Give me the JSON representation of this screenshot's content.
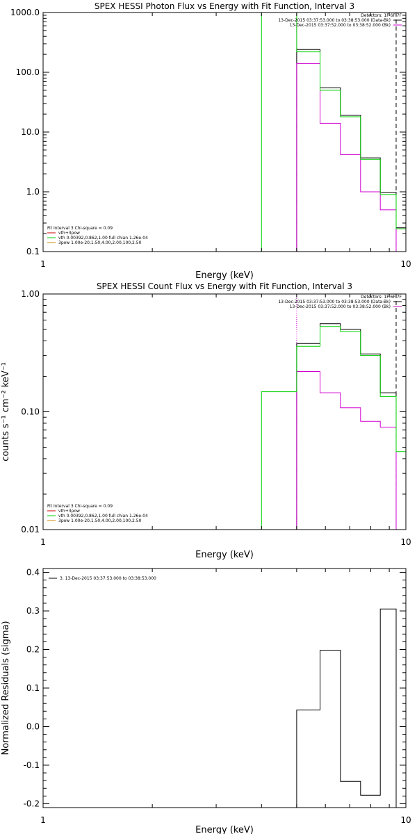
{
  "colors": {
    "black": "#000000",
    "magenta": "#d000d0",
    "green": "#00d000",
    "red": "#cc0000",
    "orange": "#cc8800"
  },
  "chart_data": [
    {
      "type": "line",
      "title": "SPEX HESSI Photon Flux vs Energy with Fit Function, Interval 3",
      "xlabel": "Energy (keV)",
      "ylabel": "",
      "xscale": "log",
      "yscale": "log",
      "xlim": [
        1,
        10
      ],
      "ylim": [
        0.1,
        1000.0
      ],
      "xticks": [
        {
          "v": 1,
          "label": "1"
        },
        {
          "v": 10,
          "label": "10"
        }
      ],
      "yticks": [
        {
          "v": 0.1,
          "label": "0.1"
        },
        {
          "v": 1.0,
          "label": "1.0"
        },
        {
          "v": 10.0,
          "label": "10.0"
        },
        {
          "v": 100.0,
          "label": "100.0"
        },
        {
          "v": 1000.0,
          "label": "1000.0"
        }
      ],
      "legend_tr": [
        {
          "text": "Detectors: 1F 6F 7F",
          "color": "#000000",
          "line": false
        },
        {
          "text": "13-Dec-2015 03:37:53.000 to 03:38:53.000 (Data-Bk)",
          "color": "#000000",
          "line": true
        },
        {
          "text": "13-Dec-2015 03:37:52.000 to 03:38:52.000 (Bk)",
          "color": "#d000d0",
          "line": true
        }
      ],
      "legend_bl": [
        {
          "text": "Fit Interval 3   Chi-square = 0.09",
          "color": "#000000",
          "line": false
        },
        {
          "text": "vth+3pow",
          "color": "#cc0000",
          "line": true
        },
        {
          "text": "vth 0.00392,0.862,1.00   full chian 1.26e-04",
          "color": "#00d000",
          "line": true
        },
        {
          "text": "3pow 1.00e-20,1.50,4.00,2.00,100,2.50",
          "color": "#cc8800",
          "line": true
        }
      ],
      "series": [
        {
          "name": "13-Dec-2015 03:37:53.000 to 03:38:53.000 (Data-Bk)",
          "color": "#000000",
          "edges": [
            5.0,
            5.8,
            6.6,
            7.5,
            8.5,
            9.4,
            10.0
          ],
          "values": [
            240,
            55,
            19,
            3.7,
            0.98,
            0.25
          ]
        },
        {
          "name": "13-Dec-2015 03:37:52.000 to 03:38:52.000 (Bk)",
          "color": "#d000d0",
          "edges": [
            5.0,
            5.8,
            6.6,
            7.5,
            8.5,
            9.4
          ],
          "values": [
            140,
            14,
            4.2,
            1.0,
            0.5
          ]
        },
        {
          "name": "vth 0.00392,0.862,1.00   full chian 1.26e-04",
          "color": "#00d000",
          "edges": [
            4.0,
            5.0,
            5.8,
            6.6,
            7.5,
            8.5,
            9.4,
            10.0
          ],
          "values": [
            1000,
            220,
            50,
            18,
            3.5,
            0.9,
            0.24
          ]
        }
      ],
      "vlines": [
        {
          "x": 5.0,
          "color": "#d000d0",
          "style": "dot"
        },
        {
          "x": 9.4,
          "color": "#000000",
          "style": "dash"
        }
      ]
    },
    {
      "type": "line",
      "title": "SPEX HESSI Count Flux vs Energy with Fit Function, Interval 3",
      "xlabel": "Energy (keV)",
      "ylabel": "counts s⁻¹ cm⁻² keV⁻¹",
      "xscale": "log",
      "yscale": "log",
      "xlim": [
        1,
        10
      ],
      "ylim": [
        0.01,
        1.0
      ],
      "xticks": [
        {
          "v": 1,
          "label": "1"
        },
        {
          "v": 10,
          "label": "10"
        }
      ],
      "yticks": [
        {
          "v": 0.01,
          "label": "0.01"
        },
        {
          "v": 0.1,
          "label": "0.10"
        },
        {
          "v": 1.0,
          "label": "1.00"
        }
      ],
      "legend_tr": [
        {
          "text": "Detectors: 1F 6F 7F",
          "color": "#000000",
          "line": false
        },
        {
          "text": "13-Dec-2015 03:37:53.000 to 03:38:53.000 (Data-Bk)",
          "color": "#000000",
          "line": true
        },
        {
          "text": "13-Dec-2015 03:37:52.000 to 03:38:52.000 (Bk)",
          "color": "#d000d0",
          "line": true
        }
      ],
      "legend_bl": [
        {
          "text": "Fit Interval 3   Chi-square = 0.09",
          "color": "#000000",
          "line": false
        },
        {
          "text": "vth+3pow",
          "color": "#cc0000",
          "line": true
        },
        {
          "text": "vth 0.00392,0.862,1.00   full chian 1.26e-04",
          "color": "#00d000",
          "line": true
        },
        {
          "text": "3pow 1.00e-20,1.50,4.00,2.00,100,2.50",
          "color": "#cc8800",
          "line": true
        }
      ],
      "series": [
        {
          "name": "13-Dec-2015 03:37:53.000 to 03:38:53.000 (Data-Bk)",
          "color": "#000000",
          "edges": [
            5.0,
            5.8,
            6.6,
            7.5,
            8.5,
            9.4
          ],
          "values": [
            0.38,
            0.56,
            0.5,
            0.31,
            0.145
          ]
        },
        {
          "name": "13-Dec-2015 03:37:52.000 to 03:38:52.000 (Bk)",
          "color": "#d000d0",
          "edges": [
            5.0,
            5.8,
            6.6,
            7.5,
            8.5,
            9.4
          ],
          "values": [
            0.22,
            0.145,
            0.108,
            0.083,
            0.074
          ]
        },
        {
          "name": "vth 0.00392,0.862,1.00   full chian 1.26e-04",
          "color": "#00d000",
          "edges": [
            4.0,
            5.0,
            5.8,
            6.6,
            7.5,
            8.5,
            9.4,
            10.0
          ],
          "values": [
            0.148,
            0.36,
            0.53,
            0.48,
            0.3,
            0.135,
            0.046
          ]
        }
      ],
      "vlines": [
        {
          "x": 5.0,
          "color": "#d000d0",
          "style": "dot"
        },
        {
          "x": 9.4,
          "color": "#000000",
          "style": "dash"
        }
      ]
    },
    {
      "type": "line",
      "title": "",
      "xlabel": "Energy (keV)",
      "ylabel": "Normalized Residuals (sigma)",
      "xscale": "log",
      "yscale": "linear",
      "xlim": [
        1,
        10
      ],
      "ylim": [
        -0.21,
        0.41
      ],
      "xticks": [
        {
          "v": 1,
          "label": "1"
        },
        {
          "v": 10,
          "label": "10"
        }
      ],
      "yticks": [
        {
          "v": -0.2,
          "label": "-0.2"
        },
        {
          "v": -0.1,
          "label": "-0.1"
        },
        {
          "v": 0.0,
          "label": "0.0"
        },
        {
          "v": 0.1,
          "label": "0.1"
        },
        {
          "v": 0.2,
          "label": "0.2"
        },
        {
          "v": 0.3,
          "label": "0.3"
        },
        {
          "v": 0.4,
          "label": "0.4"
        }
      ],
      "legend_tl": [
        {
          "text": "3. 13-Dec-2015 03:37:53.000 to 03:38:53.000",
          "color": "#000000",
          "line": true
        }
      ],
      "series": [
        {
          "name": "3. 13-Dec-2015 03:37:53.000 to 03:38:53.000",
          "color": "#000000",
          "edges": [
            5.0,
            5.8,
            6.6,
            7.5,
            8.5,
            9.4
          ],
          "values": [
            0.043,
            0.198,
            -0.142,
            -0.178,
            0.305
          ]
        }
      ],
      "vlines": []
    }
  ]
}
